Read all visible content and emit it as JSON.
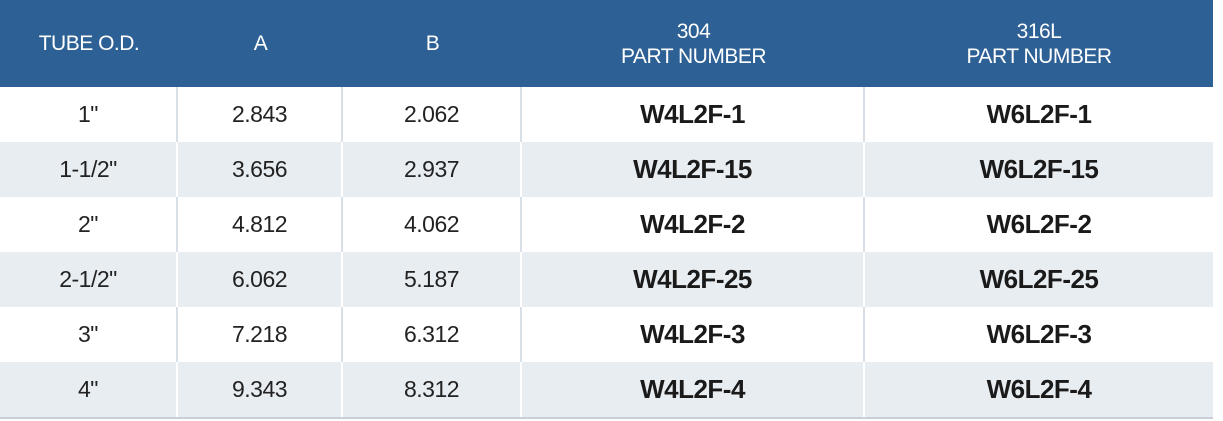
{
  "table": {
    "header": [
      [
        "TUBE O.D."
      ],
      [
        "A"
      ],
      [
        "B"
      ],
      [
        "304",
        "PART NUMBER"
      ],
      [
        "316L",
        "PART NUMBER"
      ]
    ],
    "rows": [
      [
        "1\"",
        "2.843",
        "2.062",
        "W4L2F-1",
        "W6L2F-1"
      ],
      [
        "1-1/2\"",
        "3.656",
        "2.937",
        "W4L2F-15",
        "W6L2F-15"
      ],
      [
        "2\"",
        "4.812",
        "4.062",
        "W4L2F-2",
        "W6L2F-2"
      ],
      [
        "2-1/2\"",
        "6.062",
        "5.187",
        "W4L2F-25",
        "W6L2F-25"
      ],
      [
        "3\"",
        "7.218",
        "6.312",
        "W4L2F-3",
        "W6L2F-3"
      ],
      [
        "4\"",
        "9.343",
        "8.312",
        "W4L2F-4",
        "W6L2F-4"
      ]
    ]
  }
}
